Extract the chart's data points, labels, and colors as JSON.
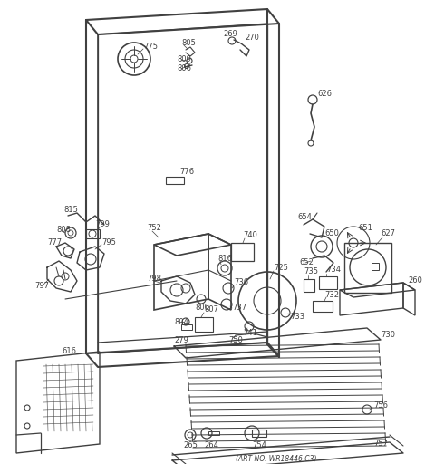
{
  "title": "",
  "art_no": "(ART NO. WR18446 C3)",
  "bg_color": "#ffffff",
  "line_color": "#404040",
  "label_fontsize": 6.0
}
